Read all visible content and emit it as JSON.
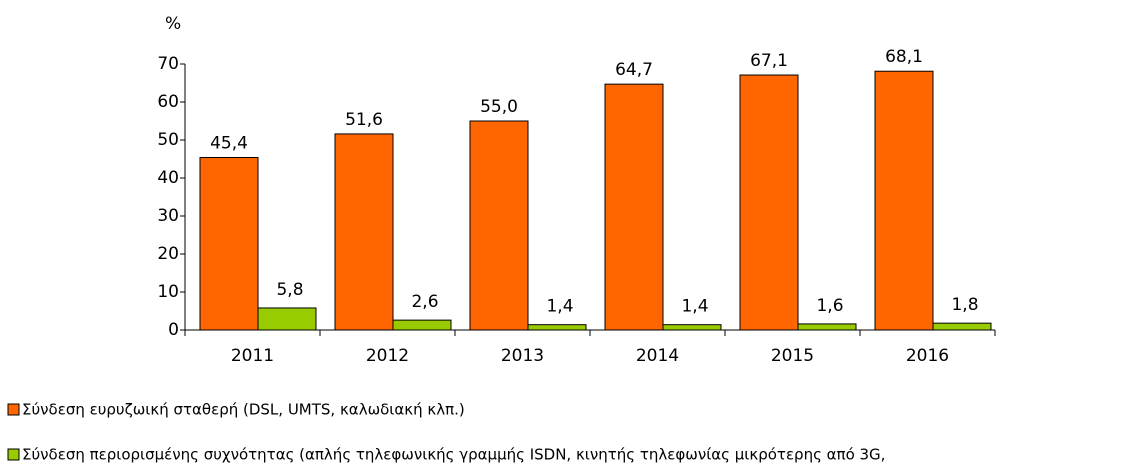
{
  "chart_data": {
    "type": "bar",
    "y_label": "%",
    "categories": [
      "2011",
      "2012",
      "2013",
      "2014",
      "2015",
      "2016"
    ],
    "series": [
      {
        "name": "Σύνδεση ευρυζωική σταθερή (DSL, UMTS, καλωδιακή κλπ.)",
        "color": "#ff6600",
        "values": [
          45.4,
          51.6,
          55.0,
          64.7,
          67.1,
          68.1
        ],
        "value_labels": [
          "45,4",
          "51,6",
          "55,0",
          "64,7",
          "67,1",
          "68,1"
        ]
      },
      {
        "name": "Σύνδεση περιορισμένης συχνότητας (απλής τηλεφωνικής γραμμής ISDN, κινητής τηλεφωνίας μικρότερης από 3G,",
        "color": "#99cc00",
        "values": [
          5.8,
          2.6,
          1.4,
          1.4,
          1.6,
          1.8
        ],
        "value_labels": [
          "5,8",
          "2,6",
          "1,4",
          "1,4",
          "1,6",
          "1,8"
        ]
      }
    ],
    "ylim": [
      0,
      70
    ],
    "yticks": [
      0,
      10,
      20,
      30,
      40,
      50,
      60,
      70
    ],
    "legend": "bottom"
  }
}
